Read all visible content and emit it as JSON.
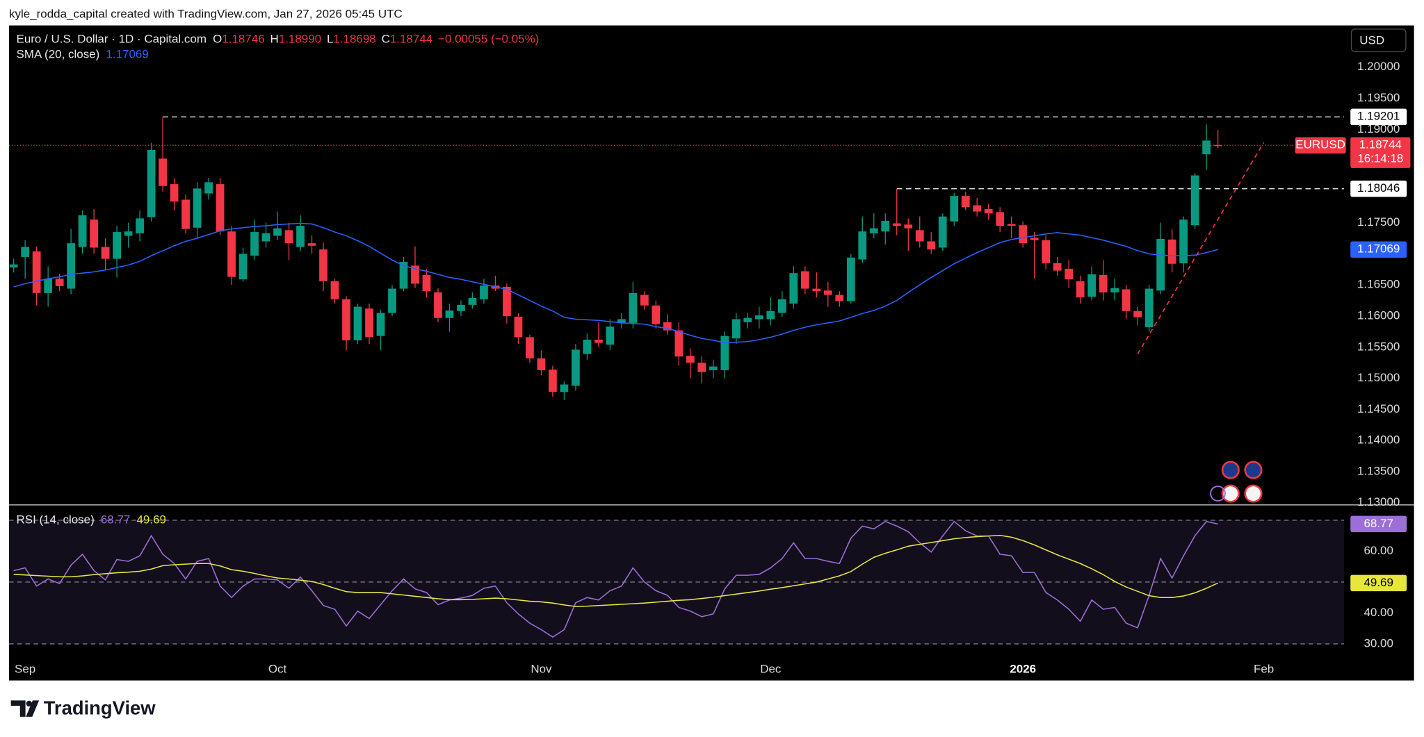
{
  "header": {
    "credit": "kyle_rodda_capital created with TradingView.com, Jan 27, 2026 05:45 UTC"
  },
  "footer": {
    "brand": "TradingView"
  },
  "chart_data": [
    {
      "type": "candlestick",
      "title": "Euro / U.S. Dollar · 1D · Capital.com",
      "currency": "USD",
      "ohlc": {
        "labels": [
          "O",
          "H",
          "L",
          "C"
        ],
        "values": [
          1.18746,
          1.1899,
          1.18698,
          1.18744
        ],
        "value_labels": [
          "1.18746",
          "1.18990",
          "1.18698",
          "1.18744"
        ]
      },
      "change": "−0.00055 (−0.05%)",
      "symbol": "EURUSD",
      "countdown": "16:14:18",
      "xlim": [
        -0.4,
        116
      ],
      "ylim": [
        1.12972,
        1.20671
      ],
      "yticks": [
        {
          "value": 1.2,
          "label": "1.20000"
        },
        {
          "value": 1.195,
          "label": "1.19500"
        },
        {
          "value": 1.19,
          "label": "1.19000"
        },
        {
          "value": 1.175,
          "label": "1.17500"
        },
        {
          "value": 1.165,
          "label": "1.16500"
        },
        {
          "value": 1.16,
          "label": "1.16000"
        },
        {
          "value": 1.155,
          "label": "1.15500"
        },
        {
          "value": 1.15,
          "label": "1.15000"
        },
        {
          "value": 1.145,
          "label": "1.14500"
        },
        {
          "value": 1.14,
          "label": "1.14000"
        },
        {
          "value": 1.135,
          "label": "1.13500"
        },
        {
          "value": 1.13,
          "label": "1.13000"
        }
      ],
      "grid": false,
      "candles": {
        "up_color": "#089981",
        "down_color": "#f23645",
        "open": [
          1.1678,
          1.1695,
          1.1704,
          1.1637,
          1.166,
          1.1644,
          1.1711,
          1.1755,
          1.1711,
          1.1692,
          1.1729,
          1.1733,
          1.1759,
          1.1853,
          1.1812,
          1.1787,
          1.1742,
          1.1797,
          1.1812,
          1.1736,
          1.1659,
          1.1697,
          1.172,
          1.1729,
          1.1738,
          1.1711,
          1.1717,
          1.1707,
          1.1656,
          1.1627,
          1.1561,
          1.1612,
          1.1568,
          1.1605,
          1.1644,
          1.1681,
          1.1666,
          1.1638,
          1.1597,
          1.1608,
          1.1618,
          1.1627,
          1.1649,
          1.1647,
          1.1599,
          1.1566,
          1.1532,
          1.1514,
          1.1478,
          1.1488,
          1.1539,
          1.1562,
          1.1554,
          1.1589,
          1.1589,
          1.1634,
          1.1617,
          1.159,
          1.1577,
          1.1536,
          1.1525,
          1.1513,
          1.1513,
          1.1564,
          1.159,
          1.1595,
          1.1595,
          1.1605,
          1.162,
          1.1672,
          1.1644,
          1.1641,
          1.1634,
          1.1624,
          1.1691,
          1.1733,
          1.1736,
          1.1749,
          1.1747,
          1.1738,
          1.172,
          1.171,
          1.1752,
          1.1793,
          1.1778,
          1.1772,
          1.1767,
          1.1748,
          1.1746,
          1.1726,
          1.1722,
          1.1685,
          1.1676,
          1.1656,
          1.1631,
          1.1666,
          1.1638,
          1.1643,
          1.1608,
          1.1582,
          1.1641,
          1.1723,
          1.1685,
          1.1746,
          1.186,
          1.18746
        ],
        "high": [
          1.1692,
          1.1722,
          1.1712,
          1.168,
          1.1668,
          1.174,
          1.177,
          1.1772,
          1.1725,
          1.1745,
          1.175,
          1.177,
          1.1878,
          1.19201,
          1.1822,
          1.1795,
          1.1815,
          1.1822,
          1.1822,
          1.1745,
          1.171,
          1.1755,
          1.175,
          1.1768,
          1.175,
          1.1762,
          1.173,
          1.1718,
          1.166,
          1.1632,
          1.162,
          1.162,
          1.161,
          1.165,
          1.1695,
          1.1712,
          1.1675,
          1.1645,
          1.162,
          1.1625,
          1.1638,
          1.166,
          1.1665,
          1.1652,
          1.1605,
          1.157,
          1.1545,
          1.152,
          1.1495,
          1.1555,
          1.1572,
          1.159,
          1.1595,
          1.1605,
          1.1655,
          1.164,
          1.1625,
          1.1603,
          1.159,
          1.1548,
          1.1535,
          1.153,
          1.1575,
          1.1605,
          1.1605,
          1.1615,
          1.163,
          1.164,
          1.168,
          1.168,
          1.167,
          1.1655,
          1.164,
          1.17,
          1.176,
          1.1765,
          1.1765,
          1.18046,
          1.1757,
          1.176,
          1.1735,
          1.1765,
          1.1798,
          1.18,
          1.179,
          1.178,
          1.1775,
          1.176,
          1.1752,
          1.1735,
          1.173,
          1.1695,
          1.169,
          1.1665,
          1.168,
          1.169,
          1.166,
          1.165,
          1.1615,
          1.165,
          1.175,
          1.174,
          1.176,
          1.183,
          1.1908,
          1.1899
        ],
        "low": [
          1.167,
          1.166,
          1.1617,
          1.1615,
          1.164,
          1.1635,
          1.17,
          1.17,
          1.1675,
          1.1662,
          1.171,
          1.172,
          1.1752,
          1.18,
          1.177,
          1.1733,
          1.1725,
          1.1787,
          1.173,
          1.165,
          1.1655,
          1.169,
          1.171,
          1.1722,
          1.169,
          1.1705,
          1.17,
          1.164,
          1.162,
          1.1545,
          1.1555,
          1.1555,
          1.1545,
          1.16,
          1.164,
          1.1645,
          1.163,
          1.159,
          1.1575,
          1.16,
          1.1612,
          1.162,
          1.164,
          1.1588,
          1.1555,
          1.1525,
          1.1505,
          1.147,
          1.1465,
          1.148,
          1.153,
          1.155,
          1.1545,
          1.158,
          1.158,
          1.161,
          1.158,
          1.157,
          1.152,
          1.15,
          1.1492,
          1.15,
          1.15,
          1.1555,
          1.158,
          1.158,
          1.1585,
          1.1598,
          1.1612,
          1.1635,
          1.163,
          1.1615,
          1.1615,
          1.162,
          1.1685,
          1.1725,
          1.1715,
          1.173,
          1.1705,
          1.171,
          1.17,
          1.1705,
          1.1745,
          1.177,
          1.176,
          1.1755,
          1.1735,
          1.1725,
          1.171,
          1.166,
          1.1675,
          1.1665,
          1.1645,
          1.162,
          1.1625,
          1.1625,
          1.1625,
          1.1595,
          1.1585,
          1.1575,
          1.1635,
          1.167,
          1.167,
          1.174,
          1.1835,
          1.18698
        ],
        "close": [
          1.1683,
          1.1711,
          1.1637,
          1.166,
          1.1648,
          1.1717,
          1.1762,
          1.171,
          1.1692,
          1.1735,
          1.1736,
          1.1757,
          1.1867,
          1.1809,
          1.1784,
          1.174,
          1.1805,
          1.1815,
          1.1736,
          1.1663,
          1.17,
          1.1735,
          1.1733,
          1.1741,
          1.1717,
          1.1745,
          1.1713,
          1.1656,
          1.1627,
          1.1561,
          1.1615,
          1.1566,
          1.1605,
          1.1644,
          1.1687,
          1.1652,
          1.164,
          1.1597,
          1.1609,
          1.1618,
          1.1629,
          1.1649,
          1.1644,
          1.16,
          1.1566,
          1.1532,
          1.1513,
          1.1478,
          1.149,
          1.1546,
          1.1562,
          1.1557,
          1.1583,
          1.1595,
          1.1637,
          1.1617,
          1.1587,
          1.1577,
          1.1535,
          1.1525,
          1.151,
          1.1519,
          1.1568,
          1.1595,
          1.1597,
          1.1601,
          1.1608,
          1.1627,
          1.1669,
          1.1644,
          1.164,
          1.1634,
          1.1624,
          1.1694,
          1.1736,
          1.1741,
          1.1753,
          1.1745,
          1.1741,
          1.172,
          1.1707,
          1.176,
          1.1793,
          1.1775,
          1.1768,
          1.1765,
          1.1745,
          1.1745,
          1.1717,
          1.1722,
          1.1685,
          1.1673,
          1.1659,
          1.163,
          1.1667,
          1.1638,
          1.1645,
          1.1608,
          1.1598,
          1.1644,
          1.1724,
          1.1684,
          1.1755,
          1.1826,
          1.1882,
          1.18744
        ]
      },
      "series": [
        {
          "name": "SMA (20, close)",
          "color": "#2962ff",
          "values": [
            1.1647,
            1.1652,
            1.1656,
            1.166,
            1.1663,
            1.1667,
            1.1669,
            1.1671,
            1.1674,
            1.1678,
            1.1682,
            1.1688,
            1.1697,
            1.1705,
            1.1713,
            1.172,
            1.1725,
            1.1731,
            1.1737,
            1.174,
            1.1742,
            1.1744,
            1.1745,
            1.1747,
            1.1748,
            1.1749,
            1.1748,
            1.1742,
            1.1735,
            1.1729,
            1.1721,
            1.1712,
            1.1701,
            1.169,
            1.1681,
            1.1676,
            1.1672,
            1.1667,
            1.1662,
            1.1659,
            1.1655,
            1.1651,
            1.1647,
            1.1643,
            1.1634,
            1.1625,
            1.1616,
            1.1608,
            1.1598,
            1.1595,
            1.1594,
            1.1593,
            1.1591,
            1.1589,
            1.1588,
            1.1587,
            1.1583,
            1.158,
            1.1575,
            1.1569,
            1.1564,
            1.1561,
            1.1557,
            1.1558,
            1.1559,
            1.1562,
            1.1566,
            1.1571,
            1.1577,
            1.1582,
            1.1586,
            1.1589,
            1.1592,
            1.1598,
            1.1604,
            1.1609,
            1.1616,
            1.1625,
            1.1638,
            1.165,
            1.1662,
            1.1673,
            1.1684,
            1.1693,
            1.1702,
            1.171,
            1.1718,
            1.1723,
            1.1726,
            1.1729,
            1.1732,
            1.1734,
            1.1732,
            1.173,
            1.1726,
            1.1722,
            1.1717,
            1.1712,
            1.1705,
            1.17,
            1.1698,
            1.1697,
            1.1697,
            1.1698,
            1.1702,
            1.17069
          ]
        }
      ],
      "levels": [
        {
          "value": 1.19201,
          "start": 13
        },
        {
          "value": 1.18046,
          "start": 77
        }
      ],
      "trendline": {
        "color": "#f23645",
        "x": [
          98,
          109
        ],
        "y": [
          1.1539,
          1.1879
        ]
      }
    },
    {
      "type": "line",
      "xlim": [
        -0.4,
        116
      ],
      "ylim": [
        25.8,
        75.1
      ],
      "yticks": [
        {
          "value": 60,
          "label": "60.00"
        },
        {
          "value": 40,
          "label": "40.00"
        },
        {
          "value": 30,
          "label": "30.00"
        }
      ],
      "bands": [
        70,
        50,
        30
      ],
      "band_color": "#130e1c",
      "xticks": [
        {
          "value": 1,
          "label": "Sep"
        },
        {
          "value": 23,
          "label": "Oct"
        },
        {
          "value": 46,
          "label": "Nov"
        },
        {
          "value": 66,
          "label": "Dec"
        },
        {
          "value": 88,
          "label": "2026"
        },
        {
          "value": 109,
          "label": "Feb"
        }
      ],
      "series": [
        {
          "name": "RSI (14, close)",
          "color": "#9c6fd6",
          "values": [
            53.7,
            54.6,
            48.7,
            51.0,
            49.5,
            55.5,
            59.0,
            53.7,
            50.7,
            57.3,
            56.7,
            58.5,
            65.0,
            59.0,
            56.0,
            51.0,
            56.7,
            57.6,
            48.7,
            45.0,
            48.7,
            51.0,
            51.0,
            50.7,
            48.0,
            51.6,
            47.2,
            42.4,
            41.2,
            35.8,
            40.6,
            38.2,
            42.7,
            47.2,
            51.0,
            47.8,
            46.6,
            42.7,
            44.2,
            44.8,
            45.7,
            48.0,
            48.7,
            43.3,
            39.7,
            36.7,
            34.6,
            32.2,
            34.6,
            43.3,
            45.0,
            44.2,
            47.2,
            48.7,
            54.6,
            50.0,
            47.2,
            45.7,
            41.8,
            40.6,
            38.8,
            39.7,
            47.8,
            52.2,
            52.2,
            52.5,
            54.6,
            57.6,
            62.7,
            57.6,
            57.6,
            56.7,
            56.0,
            64.2,
            68.1,
            67.2,
            69.6,
            68.1,
            66.3,
            62.7,
            59.7,
            64.9,
            69.6,
            66.6,
            64.9,
            64.9,
            59.0,
            58.5,
            53.1,
            53.1,
            46.6,
            44.2,
            41.2,
            37.3,
            44.2,
            41.2,
            41.8,
            36.7,
            35.2,
            45.7,
            57.6,
            51.3,
            58.5,
            65.0,
            69.6,
            68.77
          ]
        },
        {
          "color": "#e6e63c",
          "values": [
            52.5,
            52.3,
            52.1,
            51.9,
            51.7,
            51.7,
            52.0,
            52.4,
            52.7,
            53.0,
            53.2,
            53.5,
            54.2,
            55.3,
            55.6,
            55.8,
            56.0,
            56.0,
            55.2,
            54.0,
            53.5,
            52.8,
            52.0,
            51.3,
            51.0,
            50.6,
            50.2,
            49.2,
            48.0,
            46.9,
            46.6,
            46.6,
            46.6,
            46.2,
            45.8,
            45.4,
            45.0,
            44.6,
            44.3,
            44.3,
            44.4,
            44.6,
            44.8,
            44.6,
            44.2,
            43.8,
            43.6,
            43.2,
            42.6,
            42.1,
            42.2,
            42.4,
            42.6,
            42.8,
            43.0,
            43.2,
            43.5,
            43.8,
            44.1,
            44.3,
            44.7,
            45.1,
            45.6,
            46.1,
            46.6,
            47.1,
            47.7,
            48.2,
            48.8,
            49.4,
            50.0,
            51.0,
            52.0,
            53.4,
            55.8,
            58.0,
            59.3,
            60.4,
            61.6,
            62.2,
            62.8,
            63.4,
            64.0,
            64.4,
            64.7,
            64.9,
            65.1,
            64.5,
            63.4,
            62.0,
            60.4,
            58.8,
            57.4,
            56.0,
            54.3,
            52.4,
            50.2,
            48.4,
            47.0,
            45.6,
            45.0,
            45.0,
            45.5,
            46.5,
            48.0,
            49.69
          ]
        }
      ]
    }
  ]
}
